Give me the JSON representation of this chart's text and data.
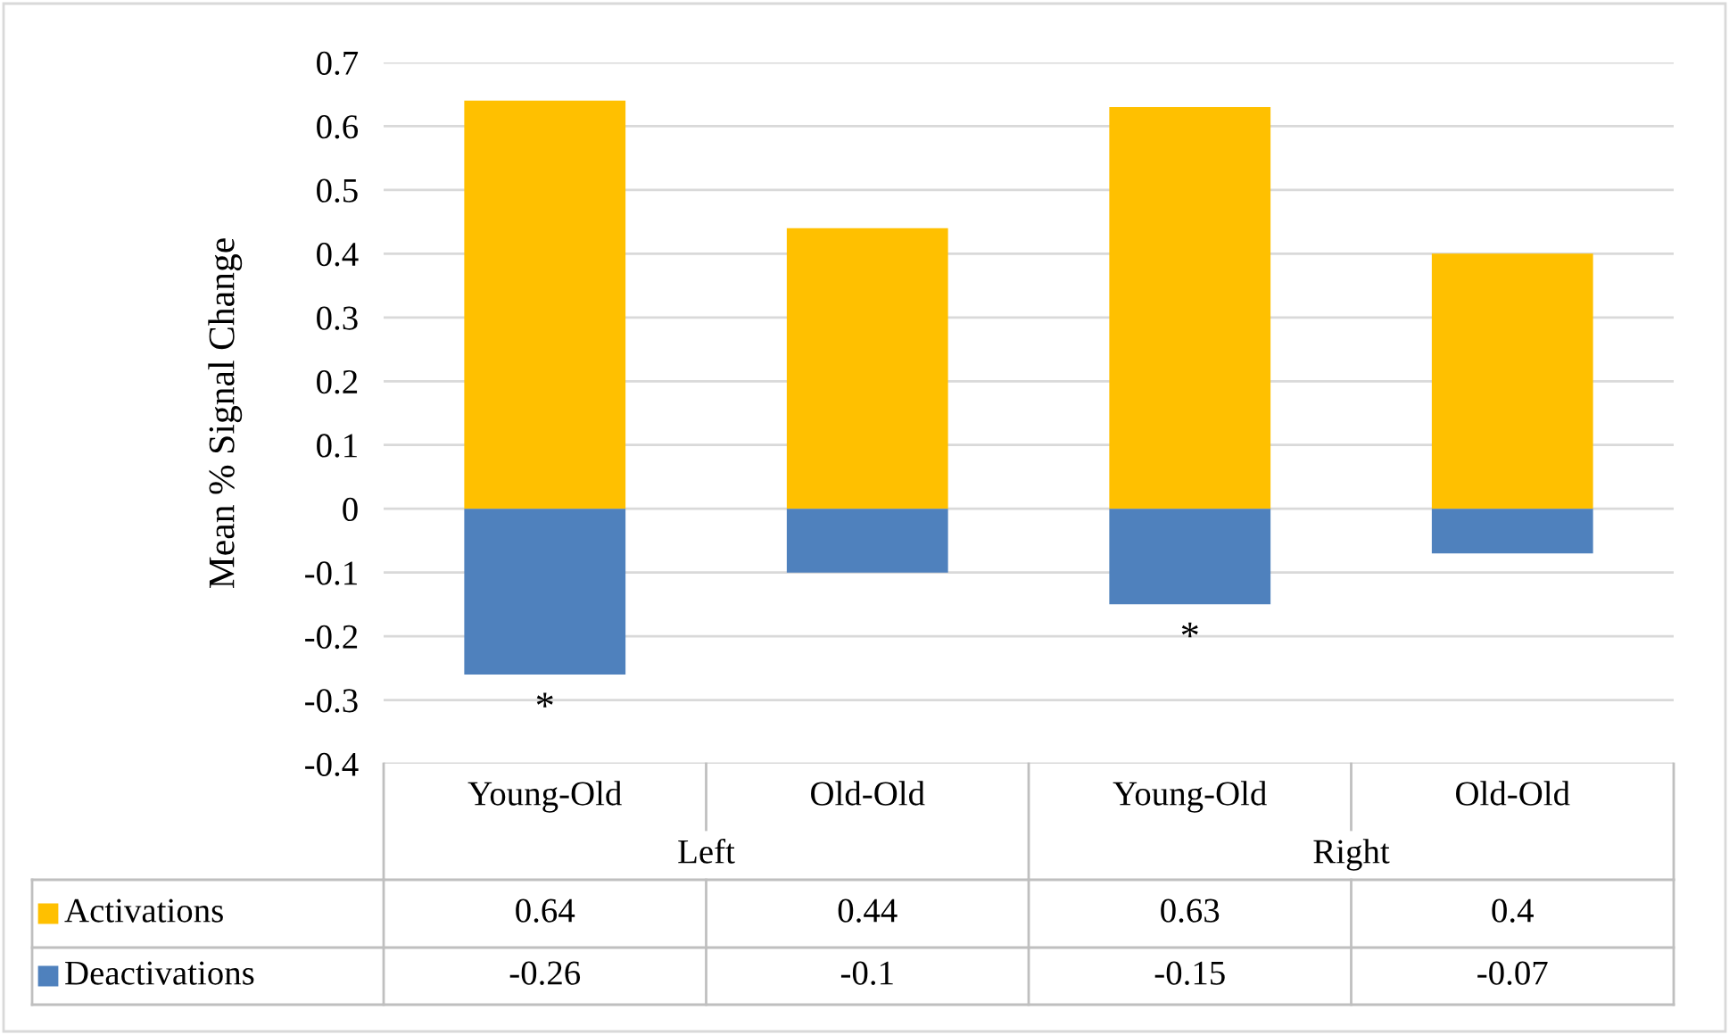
{
  "chart_data": {
    "type": "bar",
    "ylabel": "Mean % Signal Change",
    "categories": [
      "Young-Old",
      "Old-Old",
      "Young-Old",
      "Old-Old"
    ],
    "series": [
      {
        "name": "Activations",
        "color": "#ffc000",
        "values": [
          0.64,
          0.44,
          0.63,
          0.4
        ]
      },
      {
        "name": "Deactivations",
        "color": "#4f81bd",
        "values": [
          -0.26,
          -0.1,
          -0.15,
          -0.07
        ]
      }
    ],
    "stacked": true,
    "ylim": [
      -0.4,
      0.7
    ],
    "yticks": [
      -0.4,
      -0.3,
      -0.2,
      -0.1,
      0,
      0.1,
      0.2,
      0.3,
      0.4,
      0.5,
      0.6,
      0.7
    ],
    "grid": "y",
    "legend": "bottom",
    "data_labels": true,
    "annotations": [
      "Left",
      "Right",
      "*",
      "*"
    ]
  }
}
